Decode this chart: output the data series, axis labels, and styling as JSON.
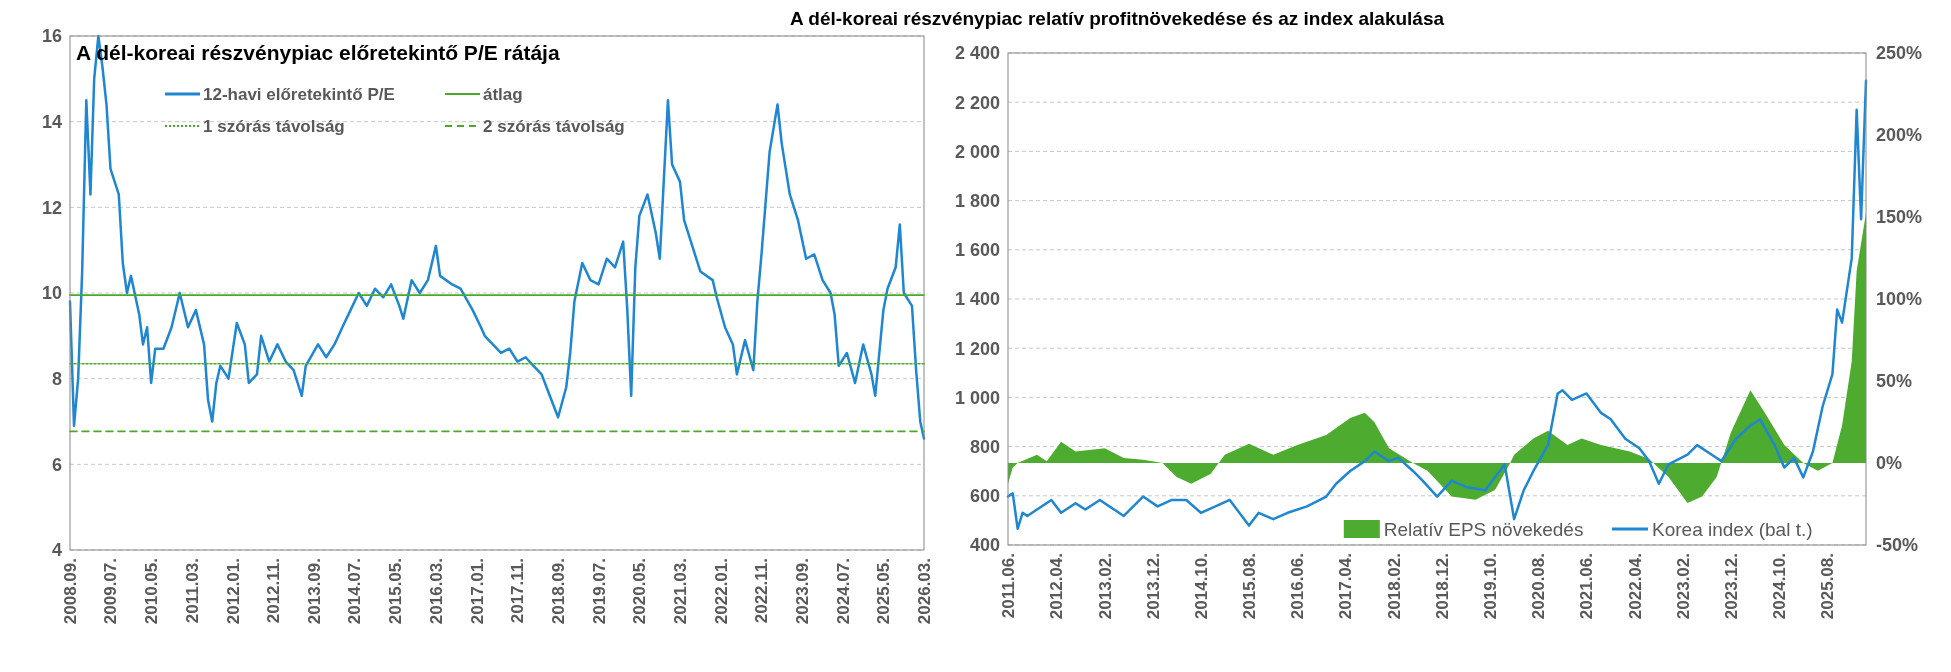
{
  "chart_data": [
    {
      "type": "line",
      "title": "A dél-koreai részvénypiac előretekintő P/E rátája",
      "xlim": [
        "2008-09",
        "2026-03"
      ],
      "ylim": [
        4,
        16
      ],
      "yticks": [
        4,
        6,
        8,
        10,
        12,
        14,
        16
      ],
      "xticks": [
        {
          "value": "2008-09",
          "label": "2008.09."
        },
        {
          "value": "2009-07",
          "label": "2009.07."
        },
        {
          "value": "2010-05",
          "label": "2010.05."
        },
        {
          "value": "2011-03",
          "label": "2011.03."
        },
        {
          "value": "2012-01",
          "label": "2012.01."
        },
        {
          "value": "2012-11",
          "label": "2012.11."
        },
        {
          "value": "2013-09",
          "label": "2013.09."
        },
        {
          "value": "2014-07",
          "label": "2014.07."
        },
        {
          "value": "2015-05",
          "label": "2015.05."
        },
        {
          "value": "2016-03",
          "label": "2016.03."
        },
        {
          "value": "2017-01",
          "label": "2017.01."
        },
        {
          "value": "2017-11",
          "label": "2017.11."
        },
        {
          "value": "2018-09",
          "label": "2018.09."
        },
        {
          "value": "2019-07",
          "label": "2019.07."
        },
        {
          "value": "2020-05",
          "label": "2020.05."
        },
        {
          "value": "2021-03",
          "label": "2021.03."
        },
        {
          "value": "2022-01",
          "label": "2022.01."
        },
        {
          "value": "2022-11",
          "label": "2022.11."
        },
        {
          "value": "2023-09",
          "label": "2023.09."
        },
        {
          "value": "2024-07",
          "label": "2024.07."
        },
        {
          "value": "2025-05",
          "label": "2025.05."
        },
        {
          "value": "2026-03",
          "label": "2026.03."
        }
      ],
      "grid": "y",
      "legend": "top",
      "series": [
        {
          "name": "12-havi előretekintő P/E",
          "color": "#1f86d1",
          "line_style": "solid",
          "x": [
            "2008-09",
            "2008-10",
            "2008-11",
            "2008-12",
            "2009-01",
            "2009-02",
            "2009-03",
            "2009-04",
            "2009-05",
            "2009-06",
            "2009-07",
            "2009-09",
            "2009-10",
            "2009-11",
            "2009-12",
            "2010-02",
            "2010-03",
            "2010-04",
            "2010-05",
            "2010-06",
            "2010-08",
            "2010-10",
            "2010-12",
            "2011-02",
            "2011-04",
            "2011-06",
            "2011-07",
            "2011-08",
            "2011-09",
            "2011-10",
            "2011-12",
            "2012-02",
            "2012-04",
            "2012-05",
            "2012-07",
            "2012-08",
            "2012-10",
            "2012-12",
            "2013-02",
            "2013-04",
            "2013-06",
            "2013-07",
            "2013-10",
            "2013-12",
            "2014-02",
            "2014-04",
            "2014-06",
            "2014-08",
            "2014-10",
            "2014-12",
            "2015-02",
            "2015-04",
            "2015-06",
            "2015-07",
            "2015-09",
            "2015-11",
            "2016-01",
            "2016-03",
            "2016-04",
            "2016-07",
            "2016-09",
            "2016-12",
            "2017-02",
            "2017-03",
            "2017-05",
            "2017-07",
            "2017-09",
            "2017-11",
            "2018-01",
            "2018-03",
            "2018-05",
            "2018-07",
            "2018-09",
            "2018-11",
            "2018-12",
            "2019-01",
            "2019-03",
            "2019-05",
            "2019-07",
            "2019-09",
            "2019-11",
            "2020-01",
            "2020-02",
            "2020-03",
            "2020-04",
            "2020-05",
            "2020-07",
            "2020-09",
            "2020-10",
            "2020-12",
            "2021-01",
            "2021-03",
            "2021-04",
            "2021-06",
            "2021-08",
            "2021-11",
            "2021-12",
            "2022-02",
            "2022-04",
            "2022-05",
            "2022-07",
            "2022-09",
            "2022-10",
            "2022-11",
            "2023-01",
            "2023-03",
            "2023-04",
            "2023-06",
            "2023-08",
            "2023-10",
            "2023-12",
            "2024-02",
            "2024-04",
            "2024-05",
            "2024-06",
            "2024-08",
            "2024-10",
            "2024-12",
            "2025-02",
            "2025-03",
            "2025-05",
            "2025-06",
            "2025-08",
            "2025-09",
            "2025-10",
            "2025-12",
            "2026-01",
            "2026-02",
            "2026-03"
          ],
          "values": [
            9.8,
            6.9,
            8.0,
            10.5,
            14.5,
            12.3,
            15.0,
            16.0,
            15.3,
            14.4,
            12.9,
            12.3,
            10.7,
            10.0,
            10.4,
            9.5,
            8.8,
            9.2,
            7.9,
            8.7,
            8.7,
            9.2,
            10.0,
            9.2,
            9.6,
            8.8,
            7.5,
            7.0,
            7.9,
            8.3,
            8.0,
            9.3,
            8.8,
            7.9,
            8.1,
            9.0,
            8.4,
            8.8,
            8.4,
            8.2,
            7.6,
            8.3,
            8.8,
            8.5,
            8.8,
            9.2,
            9.6,
            10.0,
            9.7,
            10.1,
            9.9,
            10.2,
            9.7,
            9.4,
            10.3,
            10.0,
            10.3,
            11.1,
            10.4,
            10.2,
            10.1,
            9.6,
            9.2,
            9.0,
            8.8,
            8.6,
            8.7,
            8.4,
            8.5,
            8.3,
            8.1,
            7.6,
            7.1,
            7.8,
            8.6,
            9.8,
            10.7,
            10.3,
            10.2,
            10.8,
            10.6,
            11.2,
            9.6,
            7.6,
            10.6,
            11.8,
            12.3,
            11.4,
            10.8,
            14.5,
            13.0,
            12.6,
            11.7,
            11.1,
            10.5,
            10.3,
            9.9,
            9.2,
            8.8,
            8.1,
            8.9,
            8.2,
            9.8,
            10.9,
            13.3,
            14.4,
            13.5,
            12.3,
            11.7,
            10.8,
            10.9,
            10.3,
            10.0,
            9.5,
            8.3,
            8.6,
            7.9,
            8.8,
            8.1,
            7.6,
            9.6,
            10.1,
            10.6,
            11.6,
            10.0,
            9.7,
            8.2,
            7.0,
            6.6
          ]
        },
        {
          "name": "átlag",
          "color": "#4aa82a",
          "line_style": "solid",
          "x": [
            "2008-09",
            "2026-03"
          ],
          "values": [
            9.95,
            9.95
          ]
        },
        {
          "name": "1 szórás távolság",
          "color": "#4aa82a",
          "line_style": "dotted",
          "x": [
            "2008-09",
            "2026-03"
          ],
          "values": [
            8.35,
            8.35
          ]
        },
        {
          "name": "2 szórás távolság",
          "color": "#4aa82a",
          "line_style": "dashed",
          "x": [
            "2008-09",
            "2026-03"
          ],
          "values": [
            6.77,
            6.77
          ]
        }
      ]
    },
    {
      "type": "line",
      "title": "A dél-koreai részvénypiac relatív profitnövekedése és az index alakulása",
      "xlim": [
        "2011-06",
        "2026-04"
      ],
      "ylim": [
        400,
        2400
      ],
      "yticks": [
        400,
        600,
        800,
        {
          "value": 1000,
          "label": "1 000"
        },
        {
          "value": 1200,
          "label": "1 200"
        },
        {
          "value": 1400,
          "label": "1 400"
        },
        {
          "value": 1600,
          "label": "1 600"
        },
        {
          "value": 1800,
          "label": "1 800"
        },
        {
          "value": 2000,
          "label": "2 000"
        },
        {
          "value": 2200,
          "label": "2 200"
        },
        {
          "value": 2400,
          "label": "2 400"
        }
      ],
      "y2lim": [
        -50,
        250
      ],
      "y2ticks": [
        {
          "value": -50,
          "label": "-50%"
        },
        {
          "value": 0,
          "label": "0%"
        },
        {
          "value": 50,
          "label": "50%"
        },
        {
          "value": 100,
          "label": "100%"
        },
        {
          "value": 150,
          "label": "150%"
        },
        {
          "value": 200,
          "label": "200%"
        },
        {
          "value": 250,
          "label": "250%"
        }
      ],
      "xticks": [
        {
          "value": "2011-06",
          "label": "2011.06."
        },
        {
          "value": "2012-04",
          "label": "2012.04."
        },
        {
          "value": "2013-02",
          "label": "2013.02."
        },
        {
          "value": "2013-12",
          "label": "2013.12."
        },
        {
          "value": "2014-10",
          "label": "2014.10."
        },
        {
          "value": "2015-08",
          "label": "2015.08."
        },
        {
          "value": "2016-06",
          "label": "2016.06."
        },
        {
          "value": "2017-04",
          "label": "2017.04."
        },
        {
          "value": "2018-02",
          "label": "2018.02."
        },
        {
          "value": "2018-12",
          "label": "2018.12."
        },
        {
          "value": "2019-10",
          "label": "2019.10."
        },
        {
          "value": "2020-08",
          "label": "2020.08."
        },
        {
          "value": "2021-06",
          "label": "2021.06."
        },
        {
          "value": "2022-04",
          "label": "2022.04."
        },
        {
          "value": "2023-02",
          "label": "2023.02."
        },
        {
          "value": "2023-12",
          "label": "2023.12."
        },
        {
          "value": "2024-10",
          "label": "2024.10."
        },
        {
          "value": "2025-08",
          "label": "2025.08."
        }
      ],
      "grid": "y",
      "legend": "bottom right",
      "series": [
        {
          "name": "Relatív EPS növekedés",
          "color": "#4dab2f",
          "type": "area",
          "axis": "y2",
          "x": [
            "2011-06",
            "2011-07",
            "2011-08",
            "2011-12",
            "2012-02",
            "2012-05",
            "2012-08",
            "2013-02",
            "2013-06",
            "2013-10",
            "2014-02",
            "2014-05",
            "2014-08",
            "2014-12",
            "2015-03",
            "2015-08",
            "2016-01",
            "2016-06",
            "2016-12",
            "2017-05",
            "2017-08",
            "2017-10",
            "2018-01",
            "2018-06",
            "2018-09",
            "2019-02",
            "2019-07",
            "2019-11",
            "2020-02",
            "2020-03",
            "2020-07",
            "2020-10",
            "2021-02",
            "2021-05",
            "2021-09",
            "2022-03",
            "2022-07",
            "2022-11",
            "2023-03",
            "2023-06",
            "2023-09",
            "2023-12",
            "2024-04",
            "2024-07",
            "2024-11",
            "2025-03",
            "2025-06",
            "2025-09",
            "2025-11",
            "2026-01",
            "2026-02",
            "2026-04"
          ],
          "values": [
            -12.6,
            -2.8,
            0,
            5,
            1,
            13,
            7,
            9,
            3,
            2,
            0,
            -8.6,
            -12.6,
            -6.7,
            5,
            11.8,
            5,
            11,
            17,
            27.5,
            30.7,
            24.8,
            9,
            0,
            -4.7,
            -20.4,
            -22.4,
            -16.5,
            -0.8,
            5,
            15,
            19.7,
            11,
            15,
            11,
            7,
            2.4,
            -8.6,
            -24.4,
            -20.4,
            -8.6,
            18.9,
            44.4,
            30.7,
            11,
            0,
            -4.7,
            0,
            22.8,
            62,
            117,
            152.5
          ]
        },
        {
          "name": "Korea index (bal t.)",
          "color": "#1f86d1",
          "axis": "y",
          "line_style": "solid",
          "x": [
            "2011-06",
            "2011-07",
            "2011-08",
            "2011-09",
            "2011-10",
            "2011-12",
            "2012-03",
            "2012-05",
            "2012-08",
            "2012-10",
            "2013-01",
            "2013-04",
            "2013-06",
            "2013-10",
            "2014-01",
            "2014-04",
            "2014-07",
            "2014-10",
            "2015-01",
            "2015-04",
            "2015-08",
            "2015-10",
            "2016-01",
            "2016-04",
            "2016-08",
            "2016-12",
            "2017-02",
            "2017-05",
            "2017-08",
            "2017-10",
            "2018-01",
            "2018-03",
            "2018-06",
            "2018-08",
            "2018-11",
            "2019-02",
            "2019-05",
            "2019-09",
            "2019-12",
            "2020-01",
            "2020-03",
            "2020-05",
            "2020-07",
            "2020-10",
            "2020-12",
            "2021-01",
            "2021-03",
            "2021-06",
            "2021-09",
            "2021-11",
            "2022-02",
            "2022-05",
            "2022-07",
            "2022-09",
            "2022-11",
            "2023-03",
            "2023-05",
            "2023-08",
            "2023-10",
            "2024-01",
            "2024-04",
            "2024-06",
            "2024-09",
            "2024-11",
            "2025-01",
            "2025-03",
            "2025-05",
            "2025-07",
            "2025-09",
            "2025-10",
            "2025-11",
            "2026-01",
            "2026-02",
            "2026-03",
            "2026-04"
          ],
          "values": [
            597,
            610,
            466,
            531,
            518,
            544,
            583,
            531,
            570,
            544,
            583,
            544,
            518,
            597,
            557,
            583,
            583,
            531,
            557,
            583,
            479,
            531,
            505,
            531,
            557,
            597,
            649,
            701,
            741,
            780,
            741,
            754,
            701,
            662,
            597,
            662,
            636,
            623,
            701,
            728,
            505,
            623,
            701,
            806,
            1016,
            1029,
            990,
            1016,
            937,
            911,
            832,
            793,
            741,
            649,
            728,
            767,
            806,
            767,
            741,
            832,
            885,
            911,
            806,
            715,
            754,
            675,
            780,
            963,
            1095,
            1357,
            1304,
            1566,
            2169,
            1724,
            2287
          ]
        }
      ]
    }
  ]
}
